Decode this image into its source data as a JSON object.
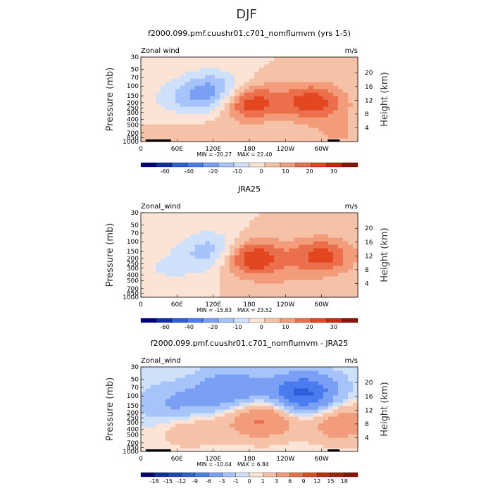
{
  "figure": {
    "supertitle": "DJF"
  },
  "chart_data": [
    {
      "type": "heatmap",
      "title": "f2000.099.pmf.cuushr01.c701_nomflumvm (yrs 1-5)",
      "left_label": "Zonal wind",
      "units_label": "m/s",
      "ylabel": "Pressure (mb)",
      "ylabel_right": "Height (km)",
      "x_ticks": [
        "0",
        "60E",
        "120E",
        "180",
        "120W",
        "60W"
      ],
      "y_ticks": [
        "30",
        "50",
        "70",
        "100",
        "150",
        "200",
        "250",
        "300",
        "400",
        "500",
        "700",
        "850",
        "1000"
      ],
      "y_ticks_right": [
        "20",
        "16",
        "12",
        "8",
        "4"
      ],
      "xlim": [
        0,
        360
      ],
      "ylim_mb": [
        1000,
        30
      ],
      "min_label": "MIN = -20.27",
      "max_label": "MAX = 22.40",
      "colorbar_levels": [
        "-60",
        "-40",
        "-20",
        "-10",
        "0",
        "10",
        "20",
        "30"
      ],
      "features": [
        {
          "kind": "jet",
          "lon": 175,
          "mb": 190,
          "peak": 22.4
        },
        {
          "kind": "jet",
          "lon": 285,
          "mb": 190,
          "peak": 18
        },
        {
          "kind": "easterly",
          "lon": 125,
          "mb": 130,
          "peak": -20.27
        },
        {
          "kind": "easterly",
          "lon": 60,
          "mb": 170,
          "peak": -6
        },
        {
          "kind": "westerly",
          "lon": 75,
          "mb": 850,
          "peak": 4
        },
        {
          "kind": "westerly",
          "lon": 330,
          "mb": 750,
          "peak": 5
        }
      ]
    },
    {
      "type": "heatmap",
      "title": "JRA25",
      "left_label": "Zonal_wind",
      "units_label": "m/s",
      "ylabel": "Pressure (mb)",
      "ylabel_right": "Height (km)",
      "x_ticks": [
        "0",
        "60E",
        "120E",
        "180",
        "120W",
        "60W"
      ],
      "y_ticks": [
        "30",
        "50",
        "70",
        "100",
        "150",
        "200",
        "250",
        "300",
        "400",
        "500",
        "700",
        "850",
        "1000"
      ],
      "y_ticks_right": [
        "20",
        "16",
        "12",
        "8",
        "4"
      ],
      "xlim": [
        0,
        360
      ],
      "ylim_mb": [
        1000,
        30
      ],
      "min_label": "MIN = -15.83",
      "max_label": "MAX = 23.52",
      "colorbar_levels": [
        "-60",
        "-40",
        "-20",
        "-10",
        "0",
        "10",
        "20",
        "30"
      ],
      "features": [
        {
          "kind": "jet",
          "lon": 180,
          "mb": 190,
          "peak": 23.52
        },
        {
          "kind": "jet",
          "lon": 300,
          "mb": 180,
          "peak": 17
        },
        {
          "kind": "easterly",
          "lon": 125,
          "mb": 150,
          "peak": -15.83
        },
        {
          "kind": "easterly",
          "lon": 40,
          "mb": 300,
          "peak": -5
        },
        {
          "kind": "westerly",
          "lon": 240,
          "mb": 600,
          "peak": 3
        }
      ]
    },
    {
      "type": "heatmap",
      "title": "f2000.099.pmf.cuushr01.c701_nomflumvm - JRA25",
      "left_label": "Zonal_wind",
      "units_label": "m/s",
      "ylabel": "Pressure (mb)",
      "ylabel_right": "Height (km)",
      "x_ticks": [
        "0",
        "60E",
        "120E",
        "180",
        "120W",
        "60W"
      ],
      "y_ticks": [
        "30",
        "50",
        "70",
        "100",
        "150",
        "200",
        "250",
        "300",
        "400",
        "500",
        "700",
        "850",
        "1000"
      ],
      "y_ticks_right": [
        "20",
        "16",
        "12",
        "8",
        "4"
      ],
      "xlim": [
        0,
        360
      ],
      "ylim_mb": [
        1000,
        30
      ],
      "min_label": "MIN = -10.04",
      "max_label": "MAX =   6.84",
      "colorbar_levels": [
        "-18",
        "-15",
        "-12",
        "-9",
        "-6",
        "-3",
        "-1",
        "0",
        "1",
        "3",
        "6",
        "9",
        "12",
        "15",
        "18"
      ],
      "features": [
        {
          "kind": "negative",
          "lon": 150,
          "mb": 80,
          "peak": -6
        },
        {
          "kind": "negative",
          "lon": 270,
          "mb": 90,
          "peak": -10.04
        },
        {
          "kind": "negative",
          "lon": 60,
          "mb": 150,
          "peak": -4
        },
        {
          "kind": "positive",
          "lon": 200,
          "mb": 250,
          "peak": 6.84
        },
        {
          "kind": "positive",
          "lon": 80,
          "mb": 350,
          "peak": 3
        },
        {
          "kind": "positive",
          "lon": 330,
          "mb": 300,
          "peak": 5
        }
      ]
    }
  ],
  "colors": {
    "diverging": [
      "#00007f",
      "#0f2fa8",
      "#2e5fd8",
      "#4a7cf0",
      "#7aa0f5",
      "#a6c3fa",
      "#cfe0fb",
      "#fbe3d6",
      "#f6c2a7",
      "#f29c7b",
      "#ec6f4c",
      "#e24722",
      "#c62b0e",
      "#8c1203"
    ]
  }
}
